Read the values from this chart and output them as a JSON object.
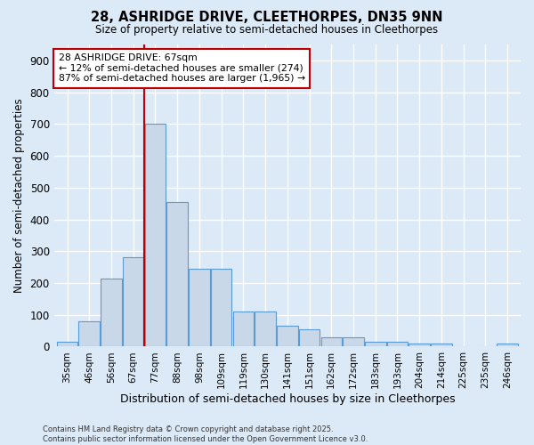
{
  "title": "28, ASHRIDGE DRIVE, CLEETHORPES, DN35 9NN",
  "subtitle": "Size of property relative to semi-detached houses in Cleethorpes",
  "xlabel": "Distribution of semi-detached houses by size in Cleethorpes",
  "ylabel": "Number of semi-detached properties",
  "footer_line1": "Contains HM Land Registry data © Crown copyright and database right 2025.",
  "footer_line2": "Contains public sector information licensed under the Open Government Licence v3.0.",
  "bar_labels": [
    "35sqm",
    "46sqm",
    "56sqm",
    "67sqm",
    "77sqm",
    "88sqm",
    "98sqm",
    "109sqm",
    "119sqm",
    "130sqm",
    "141sqm",
    "151sqm",
    "162sqm",
    "172sqm",
    "183sqm",
    "193sqm",
    "204sqm",
    "214sqm",
    "225sqm",
    "235sqm",
    "246sqm"
  ],
  "bar_values": [
    15,
    80,
    215,
    280,
    700,
    455,
    245,
    245,
    110,
    110,
    65,
    55,
    30,
    30,
    15,
    15,
    10,
    10,
    0,
    0,
    10
  ],
  "bar_color": "#c8d8e8",
  "bar_edge_color": "#5b9bd5",
  "background_color": "#dce9f7",
  "grid_color": "#ffffff",
  "vline_x": 3.5,
  "vline_color": "#c00000",
  "annotation_title": "28 ASHRIDGE DRIVE: 67sqm",
  "annotation_line1": "← 12% of semi-detached houses are smaller (274)",
  "annotation_line2": "87% of semi-detached houses are larger (1,965) →",
  "annotation_box_color": "#ffffff",
  "annotation_box_edge": "#c00000",
  "ylim": [
    0,
    950
  ],
  "yticks": [
    0,
    100,
    200,
    300,
    400,
    500,
    600,
    700,
    800,
    900
  ]
}
